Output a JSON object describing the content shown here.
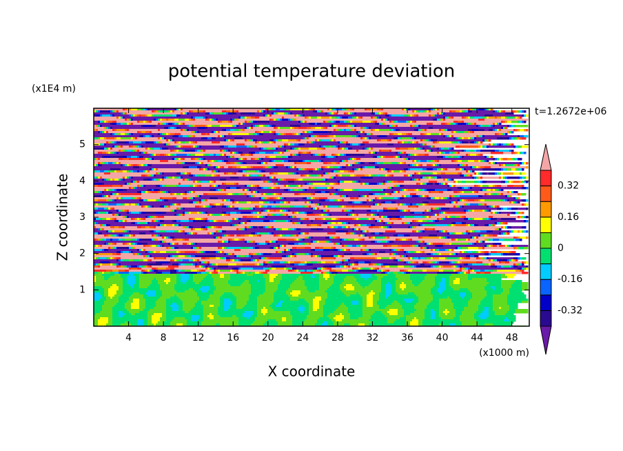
{
  "chart_data": {
    "type": "contour",
    "title": "potential temperature deviation",
    "x_label": "X coordinate",
    "y_label": "Z coordinate",
    "x_unit": "(x1000 m)",
    "y_unit": "(x1E4 m)",
    "annotation": "t=1.2672e+06",
    "xlim": [
      0,
      50
    ],
    "xticks": [
      4,
      8,
      12,
      16,
      20,
      24,
      28,
      32,
      36,
      40,
      44,
      48
    ],
    "ylim": [
      0,
      6
    ],
    "yticks": [
      1,
      2,
      3,
      4,
      5
    ],
    "levels": [
      -0.4,
      -0.32,
      -0.24,
      -0.16,
      -0.08,
      0,
      0.08,
      0.16,
      0.24,
      0.32,
      0.4
    ],
    "colors": [
      "#6a1aa8",
      "#2a0a90",
      "#0000c8",
      "#0a64ff",
      "#00ccff",
      "#00e070",
      "#60dc20",
      "#ffff00",
      "#ff9a00",
      "#ff5a1a",
      "#ff2a2a",
      "#f4a6a6"
    ],
    "colorbar_ticks": [
      -0.32,
      -0.16,
      0,
      0.16,
      0.32
    ]
  }
}
